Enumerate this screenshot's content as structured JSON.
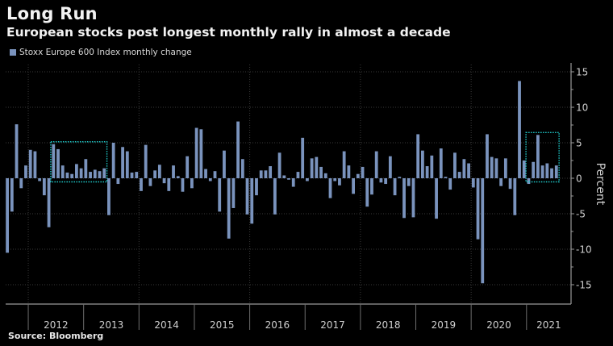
{
  "header": {
    "title": "Long Run",
    "subtitle": "European stocks post longest monthly rally in almost a decade"
  },
  "legend": {
    "label": "Stoxx Europe 600 Index monthly change",
    "color": "#7a93bd"
  },
  "footer": {
    "source": "Source: Bloomberg"
  },
  "colors": {
    "bar": "#7a93bd",
    "highlight_box": "#1fc8c8",
    "grid": "#3a3a3a",
    "axis": "#9a9a9a",
    "background": "#000000"
  },
  "chart_data": {
    "type": "bar",
    "title": "Long Run",
    "subtitle": "European stocks post longest monthly rally in almost a decade",
    "xlabel": "",
    "ylabel": "Percent",
    "ylim": [
      -17,
      17
    ],
    "yticks": [
      15,
      10,
      5,
      0,
      -5,
      -10,
      -15
    ],
    "ytick_labels": [
      "15",
      "10",
      "5",
      "0",
      "-5",
      "-10",
      "-15"
    ],
    "y_axis_position": "right",
    "x_year_labels": [
      "2012",
      "2013",
      "2014",
      "2015",
      "2016",
      "2017",
      "2018",
      "2019",
      "2020",
      "2021"
    ],
    "grid": true,
    "legend_position": "top-left",
    "start_month": "2011-08",
    "end_month": "2021-07",
    "series": [
      {
        "name": "Stoxx Europe 600 Index monthly change",
        "values": [
          -10.5,
          -4.7,
          7.6,
          -1.4,
          1.8,
          4.0,
          3.8,
          -0.4,
          -2.4,
          -6.9,
          4.8,
          4.1,
          1.8,
          0.8,
          0.6,
          2.0,
          1.4,
          2.7,
          0.9,
          1.2,
          1.0,
          1.4,
          -5.2,
          5.0,
          -0.8,
          4.4,
          3.8,
          0.8,
          0.9,
          -1.8,
          4.7,
          -1.1,
          1.1,
          1.9,
          -0.7,
          -1.8,
          1.8,
          0.3,
          -1.9,
          3.1,
          -1.4,
          7.1,
          6.9,
          1.3,
          -0.4,
          1.0,
          -4.7,
          3.9,
          -8.5,
          -4.2,
          8.0,
          2.7,
          -5.1,
          -6.4,
          -2.4,
          1.1,
          1.1,
          1.7,
          -5.1,
          3.6,
          0.4,
          -0.2,
          -1.2,
          0.9,
          5.7,
          -0.4,
          2.8,
          3.0,
          1.6,
          0.7,
          -2.8,
          -0.4,
          -1.0,
          3.8,
          1.8,
          -2.2,
          0.6,
          1.6,
          -4.0,
          -2.3,
          3.8,
          -0.6,
          -0.8,
          3.1,
          -2.4,
          0.2,
          -5.6,
          -1.1,
          -5.5,
          6.2,
          3.9,
          1.7,
          3.2,
          -5.7,
          4.2,
          0.2,
          -1.6,
          3.6,
          0.9,
          2.7,
          2.1,
          -1.3,
          -8.6,
          -14.8,
          6.2,
          3.0,
          2.8,
          -1.1,
          2.8,
          -1.5,
          -5.2,
          13.7,
          2.5,
          -0.8,
          2.3,
          6.1,
          1.8,
          2.1,
          1.4,
          1.8
        ]
      }
    ],
    "annotations": [
      {
        "type": "highlight-box",
        "label": "rally 2012-2013",
        "from_month": "2012-06",
        "to_month": "2013-05"
      },
      {
        "type": "highlight-box",
        "label": "rally 2021",
        "from_month": "2021-01",
        "to_month": "2021-07"
      }
    ]
  }
}
